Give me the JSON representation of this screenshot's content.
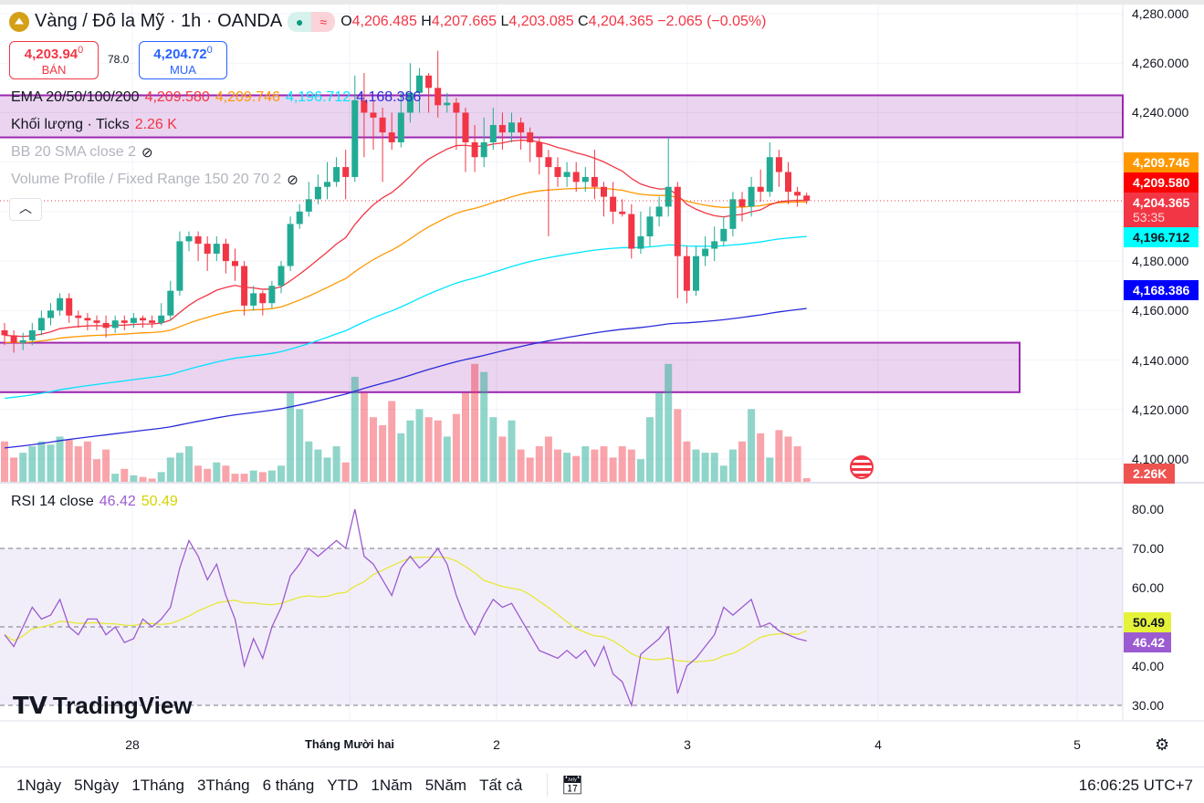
{
  "header": {
    "symbol": "Vàng / Đô la Mỹ · 1h · OANDA",
    "o_label": "O",
    "o": "4,206.485",
    "h_label": "H",
    "h": "4,207.665",
    "l_label": "L",
    "l": "4,203.085",
    "c_label": "C",
    "c": "4,204.365",
    "change": "−2.065 (−0.05%)"
  },
  "quote": {
    "sell_price": "4,203.94",
    "sell_sup": "0",
    "sell_label": "BÁN",
    "spread": "78.0",
    "buy_price": "4,204.72",
    "buy_sup": "0",
    "buy_label": "MUA"
  },
  "indicators": {
    "ema_label": "EMA 20/50/100/200",
    "ema20": "4,209.580",
    "ema50": "4,209.746",
    "ema100": "4,196.712",
    "ema200": "4,168.386",
    "vol_label": "Khối lượng · Ticks",
    "vol_value": "2.26 K",
    "bb_label": "BB 20 SMA close 2",
    "vp_label": "Volume Profile / Fixed Range 150 20 70 2",
    "rsi_label": "RSI 14 close",
    "rsi_value": "46.42",
    "rsi_signal": "50.49"
  },
  "price_axis": {
    "labels": [
      "4,280.000",
      "4,260.000",
      "4,240.000",
      "4,180.000",
      "4,160.000",
      "4,140.000",
      "4,120.000",
      "4,100.000"
    ],
    "badges": {
      "ema50": "4,209.746",
      "ema20": "4,209.580",
      "last": "4,204.365",
      "countdown": "53:35",
      "ema100": "4,196.712",
      "ema200": "4,168.386",
      "volume": "2.26K"
    }
  },
  "rsi_axis": {
    "labels": [
      "80.00",
      "70.00",
      "60.00",
      "40.00",
      "30.00"
    ],
    "badges": {
      "signal": "50.49",
      "rsi": "46.42"
    }
  },
  "time_axis": {
    "labels": [
      "28",
      "Tháng Mười hai",
      "2",
      "3",
      "4",
      "5"
    ]
  },
  "branding": "TradingView",
  "bottom_bar": {
    "ranges": [
      "1Ngày",
      "5Ngày",
      "1Tháng",
      "3Tháng",
      "6 tháng",
      "YTD",
      "1Năm",
      "5Năm",
      "Tất cả"
    ],
    "clock": "16:06:25 UTC+7"
  },
  "colors": {
    "up": "#22ab94",
    "down": "#f23645",
    "ema20": "#f23645",
    "ema50": "#ff9800",
    "ema100": "#00e5ff",
    "ema200": "#2b2bd9",
    "rsi": "#9c5bd0",
    "signal": "#e5e83a",
    "zone": "#9c27b0"
  },
  "chart_data": {
    "type": "candlestick",
    "ylim": [
      4100,
      4280
    ],
    "first_open": 4152,
    "close": [
      4150,
      4147,
      4148,
      4152,
      4157,
      4160,
      4165,
      4158,
      4157,
      4156,
      4155,
      4153,
      4156,
      4155,
      4157,
      4156,
      4155,
      4158,
      4168,
      4188,
      4190,
      4187,
      4183,
      4187,
      4180,
      4178,
      4162,
      4167,
      4163,
      4170,
      4178,
      4195,
      4200,
      4205,
      4210,
      4212,
      4218,
      4214,
      4245,
      4240,
      4238,
      4232,
      4228,
      4240,
      4248,
      4255,
      4250,
      4243,
      4244,
      4240,
      4228,
      4222,
      4228,
      4235,
      4232,
      4236,
      4232,
      4228,
      4222,
      4218,
      4214,
      4216,
      4212,
      4214,
      4210,
      4206,
      4200,
      4199,
      4185,
      4190,
      4198,
      4202,
      4210,
      4182,
      4168,
      4182,
      4185,
      4188,
      4193,
      4205,
      4202,
      4210,
      4208,
      4222,
      4216,
      4208,
      4206.485,
      4204.365
    ],
    "high": [
      4155,
      4152,
      4151,
      4155,
      4160,
      4163,
      4167,
      4167,
      4160,
      4159,
      4158,
      4158,
      4158,
      4158,
      4159,
      4158,
      4158,
      4163,
      4172,
      4192,
      4192,
      4192,
      4190,
      4190,
      4189,
      4185,
      4180,
      4170,
      4168,
      4172,
      4180,
      4198,
      4203,
      4212,
      4215,
      4220,
      4222,
      4225,
      4255,
      4256,
      4245,
      4242,
      4240,
      4248,
      4260,
      4258,
      4256,
      4265,
      4248,
      4246,
      4242,
      4235,
      4238,
      4242,
      4240,
      4240,
      4238,
      4234,
      4230,
      4225,
      4222,
      4220,
      4220,
      4218,
      4225,
      4212,
      4212,
      4205,
      4203,
      4200,
      4202,
      4206,
      4230,
      4212,
      4186,
      4186,
      4190,
      4194,
      4198,
      4208,
      4208,
      4214,
      4217,
      4228,
      4225,
      4220,
      4210,
      4207.665
    ],
    "low": [
      4146,
      4143,
      4144,
      4146,
      4150,
      4154,
      4158,
      4155,
      4153,
      4152,
      4152,
      4149,
      4151,
      4152,
      4153,
      4153,
      4153,
      4154,
      4156,
      4166,
      4184,
      4180,
      4176,
      4180,
      4175,
      4172,
      4158,
      4160,
      4158,
      4161,
      4167,
      4176,
      4193,
      4198,
      4203,
      4205,
      4210,
      4205,
      4212,
      4222,
      4225,
      4212,
      4225,
      4226,
      4236,
      4240,
      4240,
      4238,
      4240,
      4225,
      4216,
      4216,
      4218,
      4225,
      4225,
      4228,
      4225,
      4220,
      4215,
      4190,
      4210,
      4210,
      4208,
      4208,
      4205,
      4198,
      4195,
      4198,
      4181,
      4183,
      4186,
      4194,
      4198,
      4165,
      4163,
      4166,
      4178,
      4180,
      4186,
      4190,
      4196,
      4198,
      4204,
      4206,
      4210,
      4203,
      4202,
      4203.085
    ],
    "volume_k": [
      25,
      15,
      18,
      22,
      25,
      23,
      28,
      26,
      22,
      25,
      14,
      20,
      5,
      8,
      4,
      3,
      2,
      6,
      15,
      18,
      22,
      10,
      8,
      12,
      10,
      5,
      5,
      7,
      6,
      7,
      10,
      55,
      45,
      25,
      20,
      15,
      22,
      12,
      65,
      55,
      40,
      35,
      50,
      30,
      38,
      45,
      40,
      38,
      28,
      42,
      55,
      73,
      68,
      40,
      28,
      38,
      20,
      15,
      22,
      28,
      20,
      18,
      16,
      22,
      20,
      22,
      15,
      22,
      20,
      14,
      40,
      55,
      73,
      45,
      25,
      20,
      18,
      18,
      10,
      20,
      25,
      45,
      30,
      15,
      32,
      28,
      22,
      2.26
    ],
    "ema_seeds": {
      "ema20": 4150,
      "ema50": 4147,
      "ema100": 4124,
      "ema200": 4104
    },
    "zones": [
      {
        "top": 4247,
        "bottom": 4230
      },
      {
        "top": 4147,
        "bottom": 4127
      }
    ],
    "rsi": [
      48,
      45,
      50,
      55,
      52,
      53,
      57,
      50,
      48,
      52,
      52,
      48,
      50,
      46,
      47,
      52,
      50,
      52,
      55,
      65,
      72,
      68,
      62,
      66,
      58,
      52,
      40,
      47,
      42,
      50,
      55,
      63,
      66,
      70,
      68,
      70,
      72,
      70,
      80,
      68,
      66,
      62,
      58,
      65,
      68,
      65,
      67,
      70,
      66,
      58,
      52,
      48,
      53,
      57,
      55,
      56,
      52,
      48,
      44,
      43,
      42,
      44,
      42,
      44,
      40,
      45,
      38,
      36,
      30,
      43,
      45,
      47,
      50,
      33,
      40,
      42,
      45,
      48,
      55,
      53,
      55,
      57,
      50,
      51,
      49,
      48,
      47,
      46.42
    ],
    "rsi_ylim": [
      25,
      85
    ],
    "rsi_levels": [
      70,
      50,
      30
    ]
  }
}
